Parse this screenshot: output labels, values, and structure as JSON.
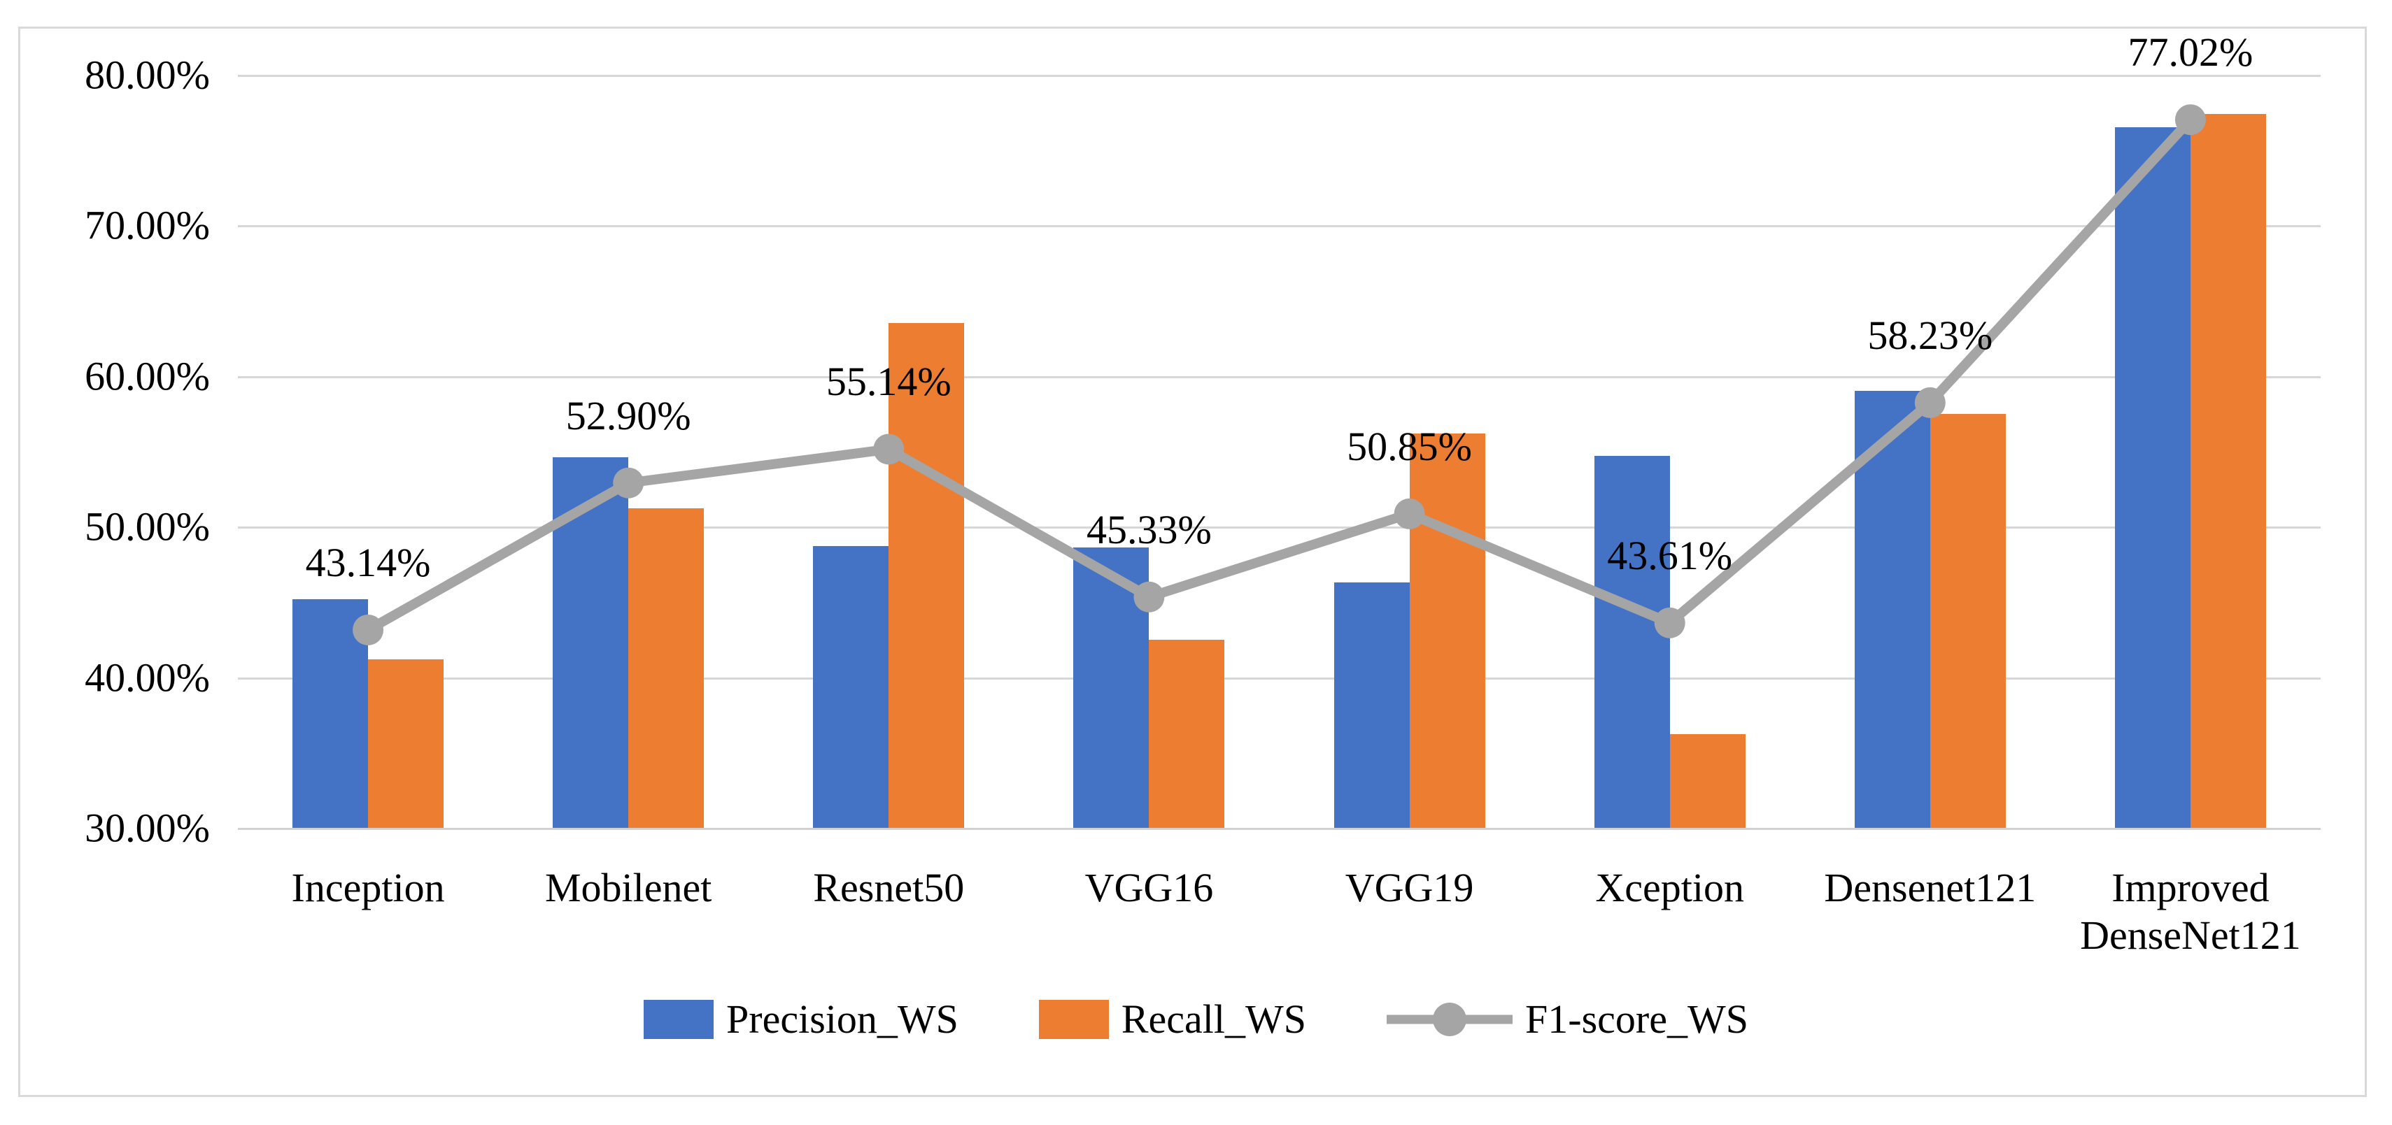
{
  "chart_data": {
    "type": "bar",
    "subtype": "grouped-bars-with-line-overlay",
    "categories": [
      "Inception",
      "Mobilenet",
      "Resnet50",
      "VGG16",
      "VGG19",
      "Xception",
      "Densenet121",
      "Improved DenseNet121"
    ],
    "series": [
      {
        "name": "Precision_WS",
        "type": "bar",
        "color": "#4472C4",
        "values": [
          45.2,
          54.6,
          48.7,
          48.6,
          46.3,
          54.7,
          59.0,
          76.5
        ]
      },
      {
        "name": "Recall_WS",
        "type": "bar",
        "color": "#ED7D31",
        "values": [
          41.2,
          51.2,
          63.5,
          42.5,
          56.2,
          36.2,
          57.5,
          77.4
        ]
      },
      {
        "name": "F1-score_WS",
        "type": "line",
        "color": "#A5A5A5",
        "marker": "circle",
        "values": [
          43.14,
          52.9,
          55.14,
          45.33,
          50.85,
          43.61,
          58.23,
          77.02
        ],
        "data_labels": [
          "43.14%",
          "52.90%",
          "55.14%",
          "45.33%",
          "50.85%",
          "43.61%",
          "58.23%",
          "77.02%"
        ]
      }
    ],
    "title": "",
    "xlabel": "",
    "ylabel": "",
    "ylim": [
      30,
      80
    ],
    "ytick_step": 10,
    "ytick_labels_top_to_bottom": [
      "80.00%",
      "70.00%",
      "60.00%",
      "50.00%",
      "40.00%",
      "30.00%"
    ],
    "grid": true,
    "legend_position": "bottom"
  },
  "legend": {
    "items": [
      {
        "label": "Precision_WS",
        "swatch": "blue-square",
        "color": "#4472C4"
      },
      {
        "label": "Recall_WS",
        "swatch": "orange-square",
        "color": "#ED7D31"
      },
      {
        "label": "F1-score_WS",
        "swatch": "gray-line-with-circle-marker",
        "color": "#A5A5A5"
      }
    ]
  },
  "colors": {
    "precision_bar": "#4472C4",
    "recall_bar": "#ED7D31",
    "f1_line": "#A5A5A5",
    "gridline": "#D7D7D7",
    "chart_border": "#D9D9D9",
    "text": "#000000",
    "background": "#FFFFFF"
  }
}
